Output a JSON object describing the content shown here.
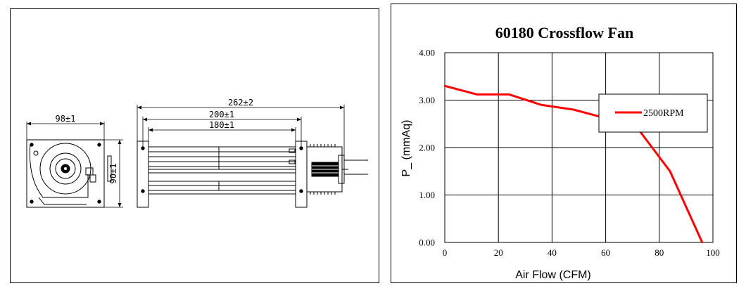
{
  "drawing": {
    "dim_width_side": "98±1",
    "dim_height_side": "90±1",
    "dim_overall": "262±2",
    "dim_mount": "200±1",
    "dim_rotor": "180±1"
  },
  "chart_data": {
    "type": "line",
    "title": "60180 Crossflow Fan",
    "xlabel": "Air Flow (CFM)",
    "ylabel": "P_ (mmAq)",
    "xlim": [
      0,
      100
    ],
    "ylim": [
      0,
      4
    ],
    "x_ticks": [
      0,
      20,
      40,
      60,
      80,
      100
    ],
    "y_ticks": [
      "0.00",
      "1.00",
      "2.00",
      "3.00",
      "4.00"
    ],
    "grid": true,
    "legend_position": "top-right",
    "series": [
      {
        "name": "2500RPM",
        "color": "#ff0000",
        "x": [
          0,
          12,
          24,
          36,
          48,
          60,
          72,
          84,
          96
        ],
        "y": [
          3.3,
          3.12,
          3.12,
          2.9,
          2.8,
          2.62,
          2.4,
          1.5,
          0.0
        ]
      }
    ]
  }
}
